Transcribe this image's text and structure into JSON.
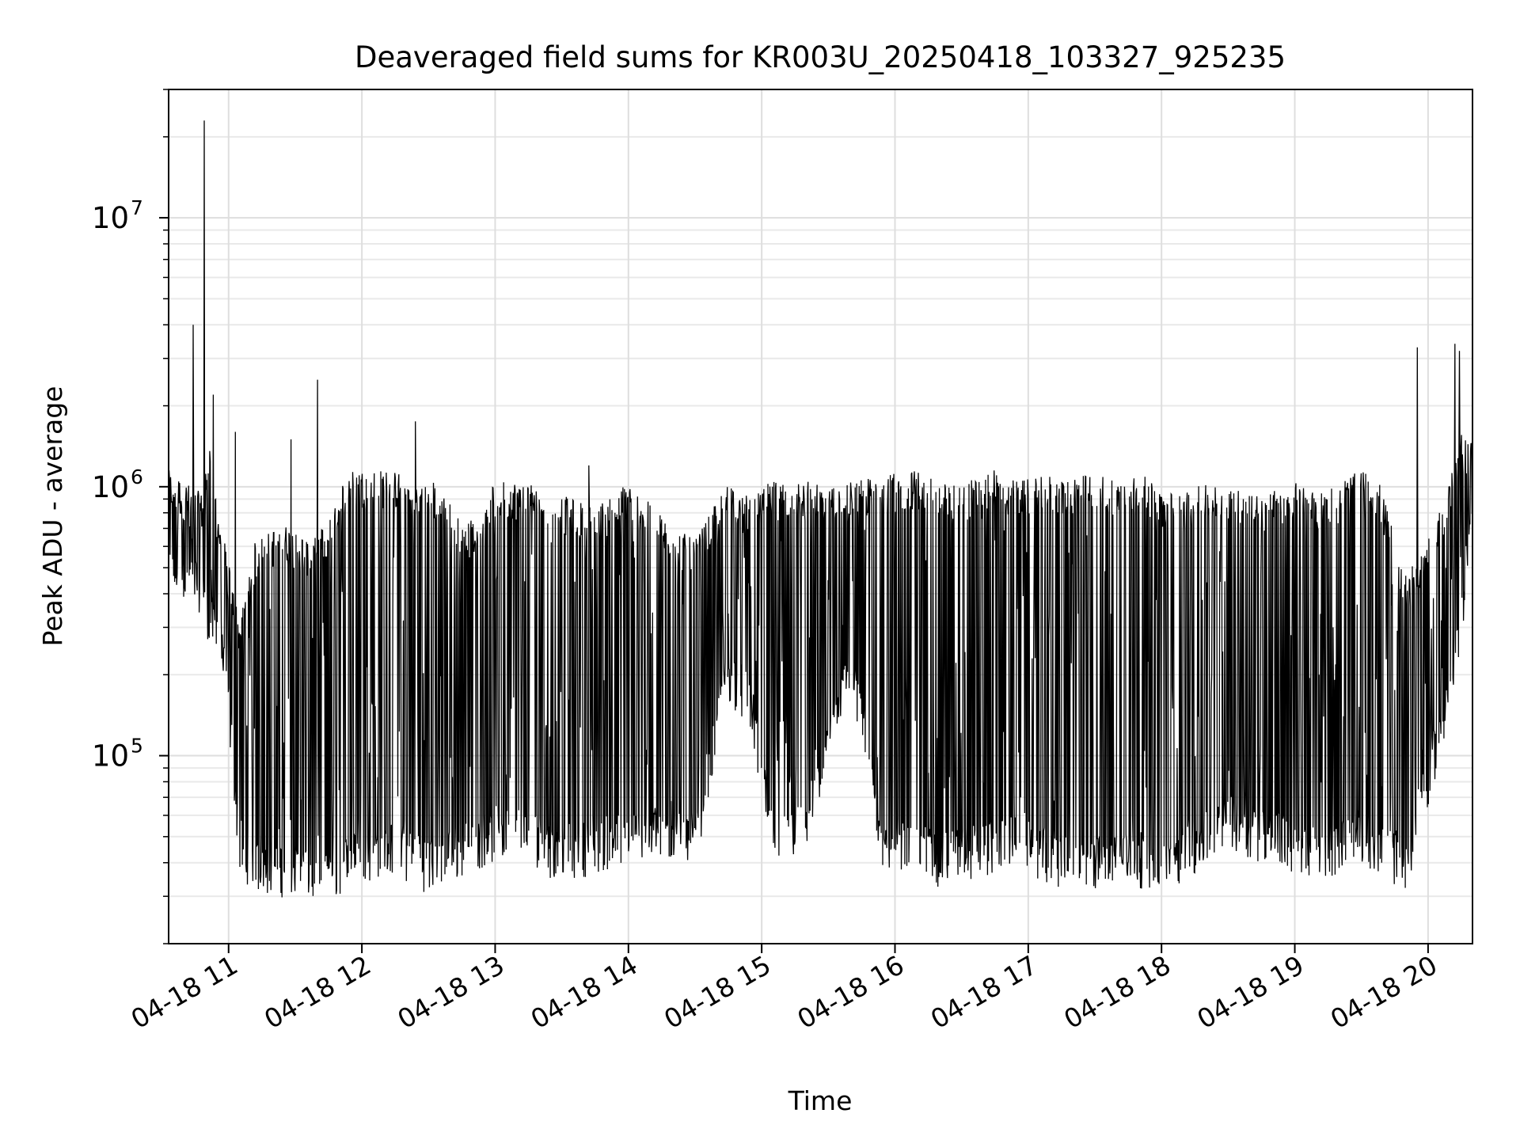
{
  "chart_data": {
    "type": "line",
    "title": "Deaveraged field sums for KR003U_20250418_103327_925235",
    "xlabel": "Time",
    "ylabel": "Peak ADU - average",
    "x_scale": "time",
    "y_scale": "log",
    "grid": true,
    "grid_minor": true,
    "line_color": "#000000",
    "xlim": [
      "2025-04-18 10:33",
      "2025-04-18 20:20"
    ],
    "ylim": [
      20000,
      30000000
    ],
    "x_ticks": [
      {
        "value": "2025-04-18 11:00",
        "label": "04-18 11"
      },
      {
        "value": "2025-04-18 12:00",
        "label": "04-18 12"
      },
      {
        "value": "2025-04-18 13:00",
        "label": "04-18 13"
      },
      {
        "value": "2025-04-18 14:00",
        "label": "04-18 14"
      },
      {
        "value": "2025-04-18 15:00",
        "label": "04-18 15"
      },
      {
        "value": "2025-04-18 16:00",
        "label": "04-18 16"
      },
      {
        "value": "2025-04-18 17:00",
        "label": "04-18 17"
      },
      {
        "value": "2025-04-18 18:00",
        "label": "04-18 18"
      },
      {
        "value": "2025-04-18 19:00",
        "label": "04-18 19"
      },
      {
        "value": "2025-04-18 20:00",
        "label": "04-18 20"
      }
    ],
    "y_ticks": [
      {
        "value": 100000,
        "base": "10",
        "exp": "5"
      },
      {
        "value": 1000000,
        "base": "10",
        "exp": "6"
      },
      {
        "value": 10000000,
        "base": "10",
        "exp": "7"
      }
    ],
    "series": [
      {
        "x": [
          "2025-04-18 10:33",
          "2025-04-18 10:40",
          "2025-04-18 10:48",
          "2025-04-18 10:52",
          "2025-04-18 10:55",
          "2025-04-18 11:00",
          "2025-04-18 11:05",
          "2025-04-18 11:12",
          "2025-04-18 11:24",
          "2025-04-18 11:38",
          "2025-04-18 11:48",
          "2025-04-18 11:53",
          "2025-04-18 12:15",
          "2025-04-18 12:23",
          "2025-04-18 12:32",
          "2025-04-18 12:48",
          "2025-04-18 13:00",
          "2025-04-18 13:15",
          "2025-04-18 13:28",
          "2025-04-18 13:45",
          "2025-04-18 14:00",
          "2025-04-18 14:18",
          "2025-04-18 14:30",
          "2025-04-18 14:45",
          "2025-04-18 14:55",
          "2025-04-18 15:05",
          "2025-04-18 15:20",
          "2025-04-18 15:40",
          "2025-04-18 15:55",
          "2025-04-18 16:10",
          "2025-04-18 16:20",
          "2025-04-18 16:32",
          "2025-04-18 16:45",
          "2025-04-18 16:55",
          "2025-04-18 17:10",
          "2025-04-18 17:25",
          "2025-04-18 17:40",
          "2025-04-18 17:52",
          "2025-04-18 18:02",
          "2025-04-18 18:15",
          "2025-04-18 18:30",
          "2025-04-18 18:45",
          "2025-04-18 19:00",
          "2025-04-18 19:10",
          "2025-04-18 19:30",
          "2025-04-18 19:38",
          "2025-04-18 19:50",
          "2025-04-18 20:00",
          "2025-04-18 20:08",
          "2025-04-18 20:15",
          "2025-04-18 20:20"
        ],
        "lo": [
          450000,
          450000,
          420000,
          300000,
          300000,
          150000,
          45000,
          38000,
          37000,
          35000,
          36000,
          40000,
          45000,
          40000,
          38000,
          45000,
          50000,
          50000,
          42000,
          45000,
          48000,
          50000,
          48000,
          200000,
          150000,
          45000,
          55000,
          200000,
          45000,
          45000,
          40000,
          42000,
          45000,
          50000,
          40000,
          38000,
          40000,
          40000,
          38000,
          45000,
          55000,
          50000,
          45000,
          42000,
          50000,
          45000,
          38000,
          80000,
          150000,
          300000,
          900000
        ],
        "hi": [
          1100000,
          1000000,
          900000,
          1500000,
          800000,
          500000,
          300000,
          600000,
          700000,
          600000,
          800000,
          1100000,
          1100000,
          1000000,
          1000000,
          700000,
          1000000,
          1000000,
          900000,
          800000,
          1000000,
          700000,
          600000,
          1000000,
          900000,
          1000000,
          1000000,
          1000000,
          1050000,
          1100000,
          1000000,
          1000000,
          1100000,
          1000000,
          1050000,
          1050000,
          1050000,
          1050000,
          900000,
          950000,
          1000000,
          900000,
          1000000,
          900000,
          1100000,
          1000000,
          450000,
          600000,
          900000,
          1500000,
          1400000
        ],
        "spikes": [
          {
            "x": "2025-04-18 10:44",
            "y": 4000000
          },
          {
            "x": "2025-04-18 10:49",
            "y": 23000000
          },
          {
            "x": "2025-04-18 10:53",
            "y": 2200000
          },
          {
            "x": "2025-04-18 11:03",
            "y": 1600000
          },
          {
            "x": "2025-04-18 11:28",
            "y": 1500000
          },
          {
            "x": "2025-04-18 11:40",
            "y": 2500000
          },
          {
            "x": "2025-04-18 12:24",
            "y": 1750000
          },
          {
            "x": "2025-04-18 13:42",
            "y": 1200000
          },
          {
            "x": "2025-04-18 19:55",
            "y": 3300000
          },
          {
            "x": "2025-04-18 20:12",
            "y": 3400000
          },
          {
            "x": "2025-04-18 20:14",
            "y": 3200000
          }
        ]
      }
    ]
  }
}
